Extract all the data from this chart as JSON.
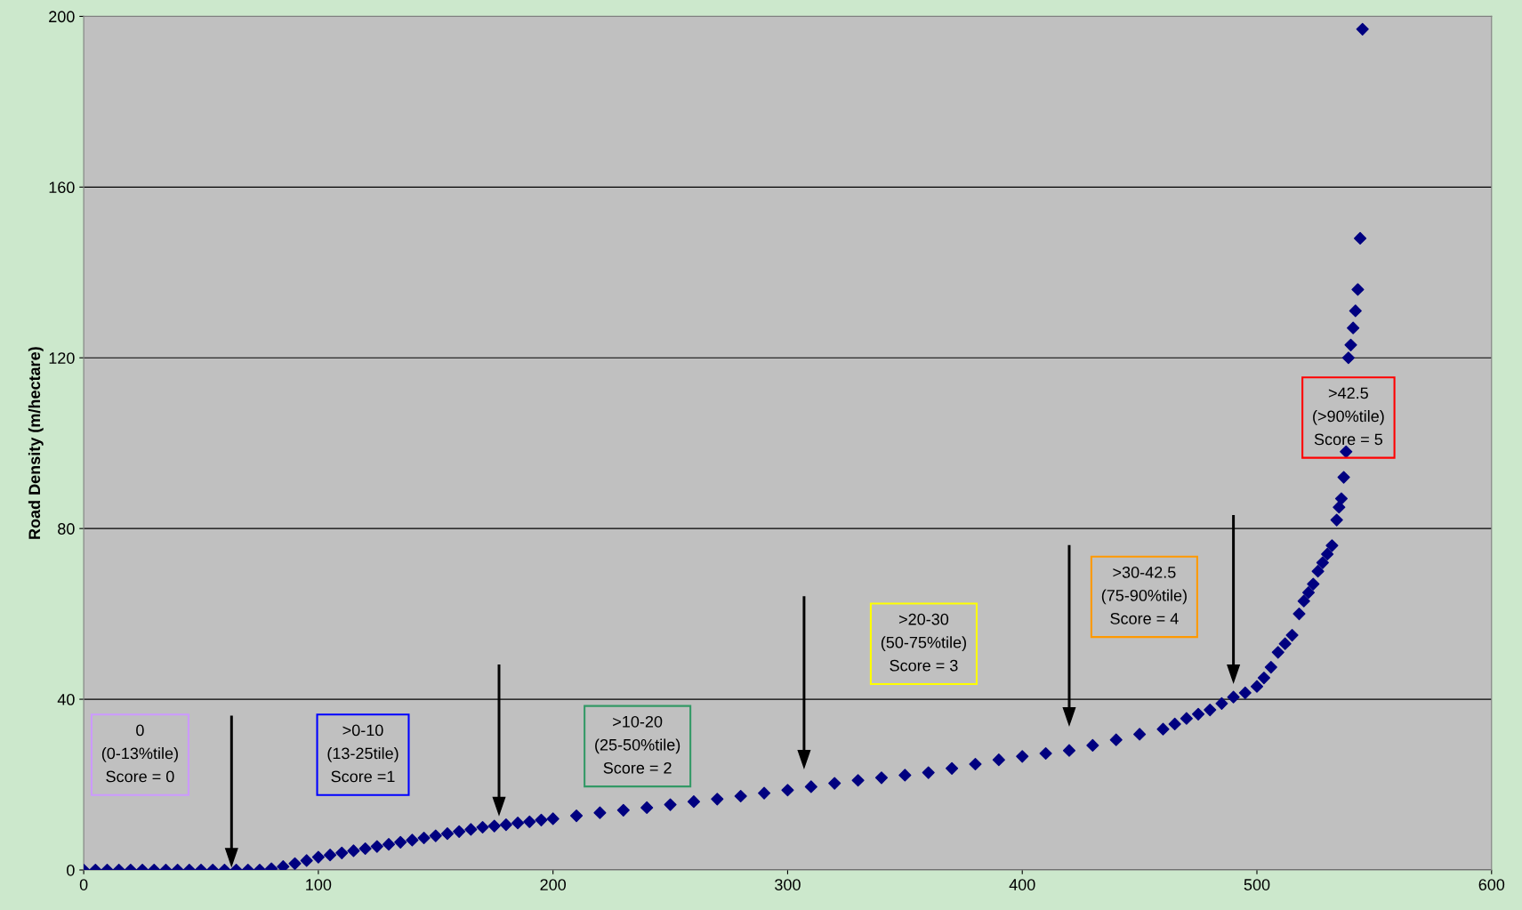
{
  "chart_data": {
    "type": "scatter",
    "ylabel": "Road Density (m/hectare)",
    "x": [
      0,
      5,
      10,
      15,
      20,
      25,
      30,
      35,
      40,
      45,
      50,
      55,
      60,
      65,
      70,
      75,
      80,
      85,
      90,
      95,
      100,
      105,
      110,
      115,
      120,
      125,
      130,
      135,
      140,
      145,
      150,
      155,
      160,
      165,
      170,
      175,
      180,
      185,
      190,
      195,
      200,
      210,
      220,
      230,
      240,
      250,
      260,
      270,
      280,
      290,
      300,
      310,
      320,
      330,
      340,
      350,
      360,
      370,
      380,
      390,
      400,
      410,
      420,
      430,
      440,
      450,
      460,
      465,
      470,
      475,
      480,
      485,
      490,
      495,
      500,
      503,
      506,
      509,
      512,
      515,
      518,
      520,
      522,
      524,
      526,
      528,
      530,
      532,
      534,
      535,
      536,
      537,
      538,
      539,
      540,
      541,
      542,
      543,
      544,
      545
    ],
    "series": [
      {
        "color": "#000080",
        "values": [
          0,
          0,
          0,
          0,
          0,
          0,
          0,
          0,
          0,
          0,
          0,
          0,
          0,
          0,
          0,
          0,
          0.3,
          0.8,
          1.5,
          2.2,
          3,
          3.5,
          4,
          4.5,
          5,
          5.5,
          6,
          6.5,
          7,
          7.5,
          8,
          8.5,
          9,
          9.5,
          10,
          10.3,
          10.6,
          11,
          11.3,
          11.7,
          12,
          12.7,
          13.4,
          14,
          14.6,
          15.3,
          16,
          16.6,
          17.3,
          18,
          18.7,
          19.5,
          20.3,
          21,
          21.6,
          22.2,
          22.8,
          23.8,
          24.8,
          25.8,
          26.6,
          27.3,
          28,
          29.2,
          30.5,
          31.8,
          33,
          34.2,
          35.5,
          36.5,
          37.5,
          39,
          40.5,
          41.5,
          43,
          45,
          47.5,
          51,
          53,
          55,
          60,
          63,
          65,
          67,
          70,
          72,
          74,
          76,
          82,
          85,
          87,
          92,
          98,
          120,
          123,
          127,
          131,
          136,
          148,
          197
        ]
      }
    ],
    "xlim": [
      0,
      600
    ],
    "ylim": [
      0,
      200
    ],
    "xticks": [
      0,
      100,
      200,
      300,
      400,
      500,
      600
    ],
    "yticks": [
      0,
      40,
      80,
      120,
      160,
      200
    ],
    "grid": "y",
    "marker": "diamond",
    "legend": false,
    "annotations": [
      "0\n(0-13%tile)\nScore = 0",
      ">0-10\n(13-25tile)\nScore =1",
      ">10-20\n(25-50%tile)\nScore = 2",
      ">20-30\n(50-75%tile)\nScore = 3",
      ">30-42.5\n(75-90%tile)\nScore = 4",
      ">42.5\n(>90%tile)\nScore = 5"
    ]
  }
}
